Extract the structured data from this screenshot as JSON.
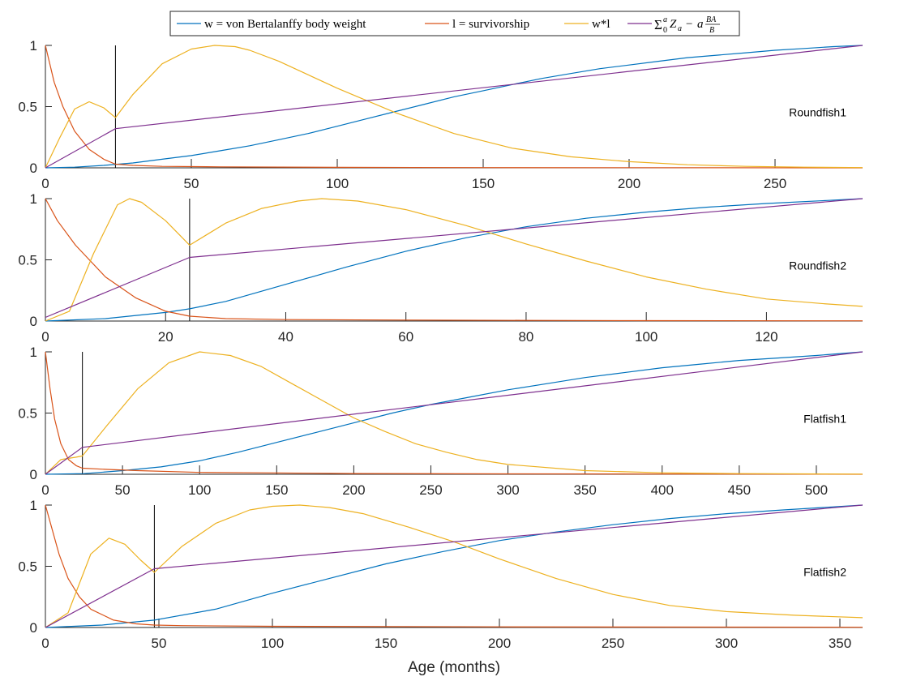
{
  "colors": {
    "weight": "#0072BD",
    "survivorship": "#D95319",
    "product": "#EDB120",
    "cumulative": "#7E2F8E",
    "axis": "#262626",
    "marker": "#000000"
  },
  "chart_data": {
    "type": "line",
    "xlabel": "Age (months)",
    "legend": {
      "placement": "top-center",
      "entries": [
        {
          "key": "weight",
          "label": "w = von Bertalanffy body weight"
        },
        {
          "key": "survivorship",
          "label": "l = survivorship"
        },
        {
          "key": "product",
          "label": "w*l"
        },
        {
          "key": "cumulative",
          "label_math": "Σ_0^a Z_a − a BA/B"
        }
      ]
    },
    "panels": [
      {
        "label": "Roundfish1",
        "xlim": [
          0,
          280
        ],
        "ylim": [
          0,
          1
        ],
        "xticks": [
          0,
          50,
          100,
          150,
          200,
          250
        ],
        "yticks": [
          0,
          0.5,
          1
        ],
        "vline": 24,
        "series": {
          "weight": {
            "x": [
              0,
              10,
              20,
              30,
              40,
              50,
              60,
              70,
              80,
              90,
              100,
              110,
              120,
              130,
              140,
              150,
              160,
              170,
              180,
              190,
              200,
              210,
              220,
              230,
              240,
              250,
              260,
              270,
              280
            ],
            "y": [
              0,
              0.005,
              0.02,
              0.04,
              0.07,
              0.1,
              0.14,
              0.18,
              0.23,
              0.28,
              0.34,
              0.4,
              0.46,
              0.52,
              0.58,
              0.63,
              0.68,
              0.73,
              0.77,
              0.81,
              0.84,
              0.87,
              0.9,
              0.92,
              0.94,
              0.96,
              0.975,
              0.99,
              1.0
            ]
          },
          "survivorship": {
            "x": [
              0,
              3,
              6,
              10,
              15,
              20,
              24,
              30,
              40,
              60,
              100,
              150,
              200,
              280
            ],
            "y": [
              1.0,
              0.7,
              0.5,
              0.3,
              0.15,
              0.07,
              0.03,
              0.02,
              0.012,
              0.008,
              0.004,
              0.002,
              0.001,
              0.0
            ]
          },
          "product": {
            "x": [
              0,
              5,
              10,
              15,
              20,
              24,
              30,
              40,
              50,
              58,
              65,
              70,
              80,
              90,
              100,
              110,
              120,
              140,
              160,
              180,
              200,
              220,
              240,
              260,
              280
            ],
            "y": [
              0,
              0.25,
              0.48,
              0.54,
              0.49,
              0.41,
              0.6,
              0.85,
              0.97,
              1.0,
              0.99,
              0.96,
              0.87,
              0.76,
              0.65,
              0.55,
              0.45,
              0.28,
              0.16,
              0.09,
              0.05,
              0.025,
              0.012,
              0.005,
              0.002
            ]
          },
          "cumulative": {
            "x": [
              0,
              24,
              280
            ],
            "y": [
              0,
              0.32,
              1.0
            ]
          }
        }
      },
      {
        "label": "Roundfish2",
        "xlim": [
          0,
          136
        ],
        "ylim": [
          0,
          1
        ],
        "xticks": [
          0,
          20,
          40,
          60,
          80,
          100,
          120
        ],
        "yticks": [
          0,
          0.5,
          1
        ],
        "vline": 24,
        "series": {
          "weight": {
            "x": [
              0,
              10,
              20,
              24,
              30,
              40,
              50,
              60,
              70,
              80,
              90,
              100,
              110,
              120,
              130,
              136
            ],
            "y": [
              0,
              0.02,
              0.07,
              0.1,
              0.16,
              0.3,
              0.44,
              0.57,
              0.68,
              0.77,
              0.84,
              0.89,
              0.93,
              0.96,
              0.985,
              1.0
            ]
          },
          "survivorship": {
            "x": [
              0,
              2,
              5,
              10,
              15,
              20,
              24,
              30,
              40,
              60,
              80,
              100,
              136
            ],
            "y": [
              1.0,
              0.82,
              0.62,
              0.36,
              0.19,
              0.08,
              0.04,
              0.02,
              0.012,
              0.008,
              0.005,
              0.003,
              0.002
            ]
          },
          "product": {
            "x": [
              0,
              4,
              8,
              12,
              14,
              16,
              20,
              24,
              30,
              36,
              42,
              46,
              52,
              60,
              70,
              80,
              90,
              100,
              110,
              120,
              130,
              136
            ],
            "y": [
              0,
              0.08,
              0.55,
              0.95,
              1.0,
              0.97,
              0.82,
              0.62,
              0.8,
              0.92,
              0.98,
              1.0,
              0.98,
              0.91,
              0.78,
              0.63,
              0.49,
              0.36,
              0.26,
              0.18,
              0.14,
              0.12
            ]
          },
          "cumulative": {
            "x": [
              0,
              24,
              136
            ],
            "y": [
              0.03,
              0.52,
              1.0
            ]
          }
        }
      },
      {
        "label": "Flatfish1",
        "xlim": [
          0,
          530
        ],
        "ylim": [
          0,
          1
        ],
        "xticks": [
          0,
          50,
          100,
          150,
          200,
          250,
          300,
          350,
          400,
          450,
          500
        ],
        "yticks": [
          0,
          0.5,
          1
        ],
        "vline": 24,
        "series": {
          "weight": {
            "x": [
              0,
              25,
              50,
              75,
              100,
              125,
              150,
              175,
              200,
              225,
              250,
              275,
              300,
              325,
              350,
              375,
              400,
              425,
              450,
              475,
              500,
              530
            ],
            "y": [
              0,
              0.005,
              0.03,
              0.06,
              0.11,
              0.18,
              0.26,
              0.34,
              0.42,
              0.5,
              0.57,
              0.63,
              0.69,
              0.74,
              0.79,
              0.83,
              0.87,
              0.9,
              0.93,
              0.95,
              0.97,
              1.0
            ]
          },
          "survivorship": {
            "x": [
              0,
              3,
              6,
              10,
              15,
              20,
              24,
              40,
              60,
              100,
              200,
              300,
              530
            ],
            "y": [
              1.0,
              0.7,
              0.45,
              0.25,
              0.12,
              0.07,
              0.05,
              0.04,
              0.03,
              0.015,
              0.006,
              0.003,
              0.0
            ]
          },
          "product": {
            "x": [
              0,
              10,
              20,
              24,
              40,
              60,
              80,
              100,
              120,
              140,
              160,
              180,
              200,
              220,
              240,
              260,
              280,
              300,
              350,
              400,
              450,
              530
            ],
            "y": [
              0,
              0.12,
              0.14,
              0.15,
              0.4,
              0.7,
              0.91,
              1.0,
              0.97,
              0.88,
              0.74,
              0.6,
              0.46,
              0.35,
              0.25,
              0.18,
              0.12,
              0.08,
              0.03,
              0.012,
              0.005,
              0.001
            ]
          },
          "cumulative": {
            "x": [
              0,
              24,
              530
            ],
            "y": [
              0,
              0.22,
              1.0
            ]
          }
        }
      },
      {
        "label": "Flatfish2",
        "xlim": [
          0,
          360
        ],
        "ylim": [
          0,
          1
        ],
        "xticks": [
          0,
          50,
          100,
          150,
          200,
          250,
          300,
          350
        ],
        "yticks": [
          0,
          0.5,
          1
        ],
        "vline": 48,
        "series": {
          "weight": {
            "x": [
              0,
              25,
              48,
              75,
              100,
              125,
              150,
              175,
              200,
              225,
              250,
              275,
              300,
              325,
              360
            ],
            "y": [
              0,
              0.02,
              0.06,
              0.15,
              0.28,
              0.4,
              0.52,
              0.62,
              0.71,
              0.78,
              0.84,
              0.89,
              0.93,
              0.96,
              1.0
            ]
          },
          "survivorship": {
            "x": [
              0,
              3,
              6,
              10,
              15,
              20,
              30,
              40,
              48,
              60,
              100,
              200,
              360
            ],
            "y": [
              1.0,
              0.8,
              0.6,
              0.4,
              0.25,
              0.15,
              0.06,
              0.03,
              0.02,
              0.015,
              0.01,
              0.005,
              0.002
            ]
          },
          "product": {
            "x": [
              0,
              10,
              20,
              28,
              35,
              42,
              48,
              60,
              75,
              90,
              100,
              112,
              125,
              140,
              160,
              180,
              200,
              225,
              250,
              275,
              300,
              330,
              360
            ],
            "y": [
              0,
              0.12,
              0.6,
              0.73,
              0.68,
              0.55,
              0.45,
              0.66,
              0.85,
              0.96,
              0.99,
              1.0,
              0.98,
              0.93,
              0.82,
              0.7,
              0.56,
              0.4,
              0.27,
              0.18,
              0.13,
              0.1,
              0.08
            ]
          },
          "cumulative": {
            "x": [
              0,
              48,
              360
            ],
            "y": [
              0,
              0.48,
              1.0
            ]
          }
        }
      }
    ]
  }
}
